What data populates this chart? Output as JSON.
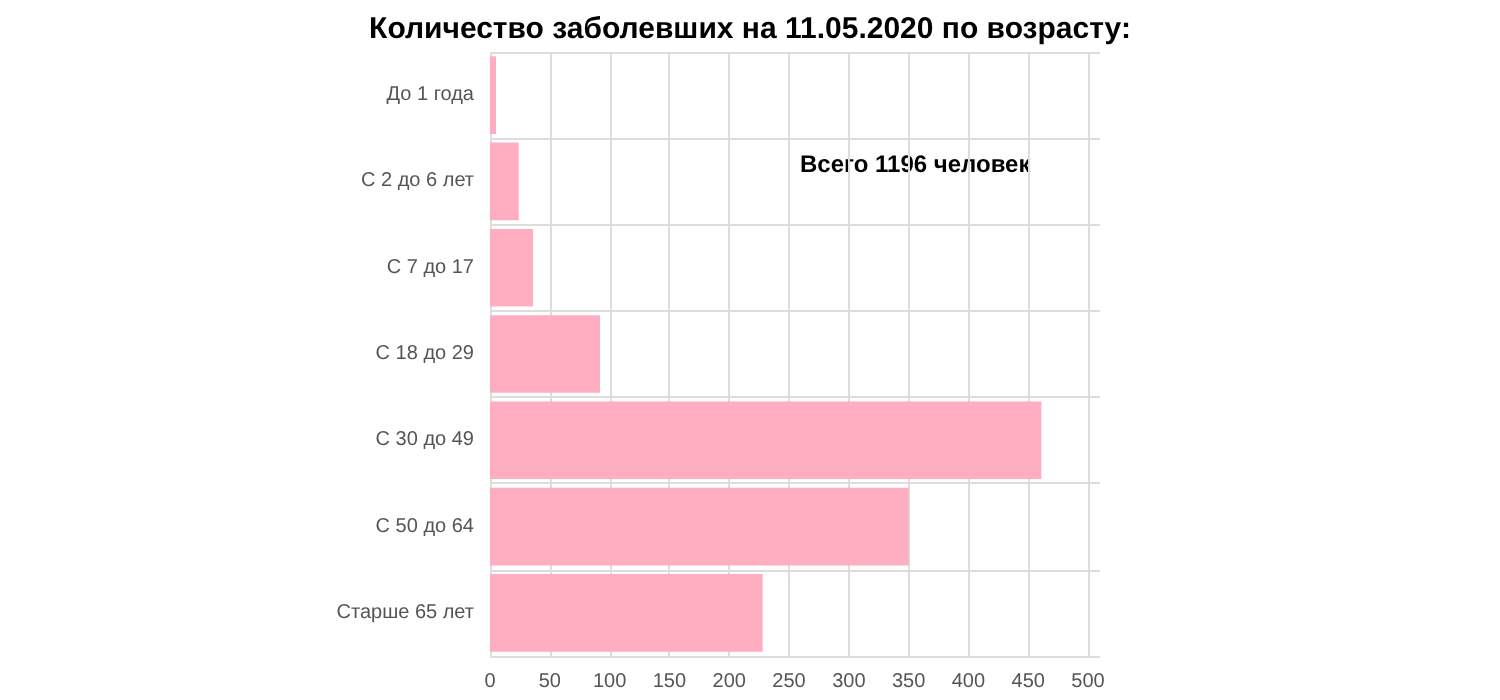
{
  "chart_data": {
    "type": "bar",
    "orientation": "horizontal",
    "title": "Количество заболевших на 11.05.2020 по возрасту:",
    "categories": [
      "До 1 года",
      "С 2 до 6 лет",
      "С 7 до 17",
      "С 18 до 29",
      "С 30 до 49",
      "С 50 до 64",
      "Старше 65 лет"
    ],
    "values": [
      5,
      24,
      36,
      92,
      461,
      350,
      228
    ],
    "color": "#ffadc1",
    "xlim": [
      0,
      510
    ],
    "xticks": [
      0,
      50,
      100,
      150,
      200,
      250,
      300,
      350,
      400,
      450,
      500
    ],
    "grid": true,
    "annotations": [
      "Всего 1196 человек"
    ]
  }
}
